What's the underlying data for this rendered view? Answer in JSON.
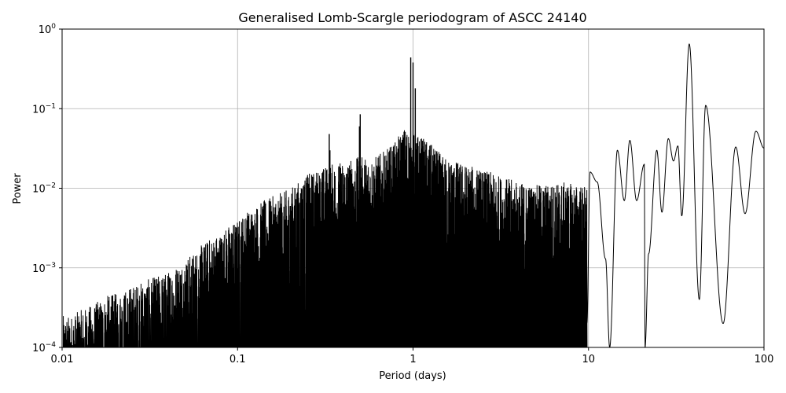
{
  "chart_data": {
    "type": "line",
    "title": "Generalised Lomb-Scargle periodogram of ASCC 24140",
    "xlabel": "Period (days)",
    "ylabel": "Power",
    "xscale": "log",
    "yscale": "log",
    "xlim": [
      0.01,
      100
    ],
    "ylim": [
      0.0001,
      1
    ],
    "grid": true,
    "x_ticks": [
      {
        "value": 0.01,
        "label": "0.01"
      },
      {
        "value": 0.1,
        "label": "0.1"
      },
      {
        "value": 1,
        "label": "1"
      },
      {
        "value": 10,
        "label": "10"
      },
      {
        "value": 100,
        "label": "100"
      }
    ],
    "y_ticks": [
      {
        "value": 0.0001,
        "base": "10",
        "exp": "−4"
      },
      {
        "value": 0.001,
        "base": "10",
        "exp": "−3"
      },
      {
        "value": 0.01,
        "base": "10",
        "exp": "−2"
      },
      {
        "value": 0.1,
        "base": "10",
        "exp": "−1"
      },
      {
        "value": 1,
        "base": "10",
        "exp": "0"
      }
    ],
    "series": [
      {
        "color": "#000000",
        "envelope_peaks": [
          [
            0.011,
            0.00025
          ],
          [
            0.013,
            0.0003
          ],
          [
            0.015,
            0.00035
          ],
          [
            0.018,
            0.00045
          ],
          [
            0.022,
            0.0005
          ],
          [
            0.025,
            0.0006
          ],
          [
            0.03,
            0.0007
          ],
          [
            0.035,
            0.0008
          ],
          [
            0.04,
            0.0009
          ],
          [
            0.045,
            0.0011
          ],
          [
            0.05,
            0.0013
          ],
          [
            0.055,
            0.0015
          ],
          [
            0.06,
            0.0018
          ],
          [
            0.065,
            0.0021
          ],
          [
            0.07,
            0.0024
          ],
          [
            0.08,
            0.0028
          ],
          [
            0.09,
            0.0035
          ],
          [
            0.1,
            0.004
          ],
          [
            0.11,
            0.005
          ],
          [
            0.125,
            0.006
          ],
          [
            0.14,
            0.007
          ],
          [
            0.16,
            0.008
          ],
          [
            0.2,
            0.01
          ],
          [
            0.25,
            0.015
          ],
          [
            0.3,
            0.018
          ],
          [
            0.333,
            0.02
          ],
          [
            0.4,
            0.022
          ],
          [
            0.5,
            0.025
          ],
          [
            0.6,
            0.025
          ],
          [
            0.7,
            0.03
          ],
          [
            0.8,
            0.04
          ],
          [
            0.9,
            0.06
          ],
          [
            1.2,
            0.04
          ],
          [
            1.5,
            0.025
          ],
          [
            2.0,
            0.02
          ],
          [
            3.0,
            0.015
          ],
          [
            4.0,
            0.012
          ],
          [
            5.0,
            0.011
          ],
          [
            7.0,
            0.012
          ],
          [
            9.0,
            0.011
          ]
        ],
        "spikes": [
          [
            0.2,
            0.006
          ],
          [
            0.25,
            0.014
          ],
          [
            0.333,
            0.048
          ],
          [
            0.5,
            0.085
          ],
          [
            0.97,
            0.44
          ],
          [
            1.0,
            0.38
          ],
          [
            1.03,
            0.18
          ],
          [
            0.495,
            0.06
          ],
          [
            0.336,
            0.03
          ]
        ],
        "lobes": [
          {
            "center": 10.2,
            "peak": 0.016,
            "halfwidth": 0.35
          },
          {
            "center": 11.2,
            "peak": 0.012,
            "halfwidth": 0.3
          },
          {
            "center": 14.6,
            "peak": 0.03,
            "halfwidth": 0.6
          },
          {
            "center": 17.2,
            "peak": 0.04,
            "halfwidth": 0.7
          },
          {
            "center": 20.8,
            "peak": 0.02,
            "halfwidth": 0.6
          },
          {
            "center": 24.5,
            "peak": 0.03,
            "halfwidth": 1.0
          },
          {
            "center": 28.5,
            "peak": 0.042,
            "halfwidth": 1.3
          },
          {
            "center": 32.3,
            "peak": 0.034,
            "halfwidth": 1.2
          },
          {
            "center": 37.5,
            "peak": 0.65,
            "halfwidth": 3.2
          },
          {
            "center": 46.5,
            "peak": 0.11,
            "halfwidth": 3.6
          },
          {
            "center": 69.0,
            "peak": 0.033,
            "halfwidth": 8.0
          },
          {
            "center": 90.0,
            "peak": 0.052,
            "halfwidth": 12.0
          }
        ],
        "lobe_minima": [
          [
            12.5,
            0.0013
          ],
          [
            13.2,
            0.0001
          ],
          [
            16.0,
            0.007
          ],
          [
            18.8,
            0.007
          ],
          [
            21.0,
            0.0001
          ],
          [
            22.0,
            0.0015
          ],
          [
            26.2,
            0.005
          ],
          [
            30.5,
            0.022
          ],
          [
            34.0,
            0.0045
          ],
          [
            42.8,
            0.0004
          ],
          [
            58.5,
            0.0002
          ],
          [
            78.0,
            0.0048
          ]
        ]
      }
    ]
  }
}
